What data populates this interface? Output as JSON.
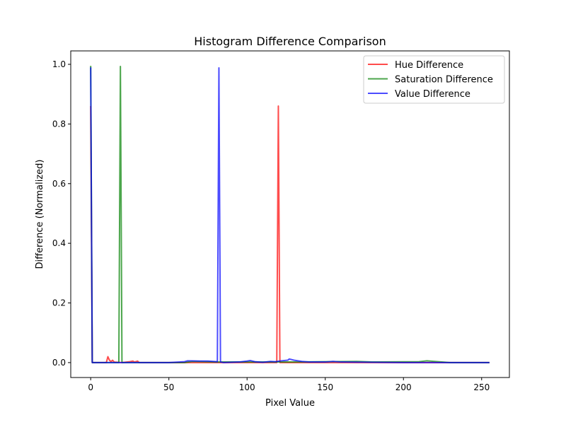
{
  "chart_data": {
    "type": "line",
    "title": "Histogram Difference Comparison",
    "xlabel": "Pixel Value",
    "ylabel": "Difference (Normalized)",
    "xlim": [
      -12.75,
      267.75
    ],
    "ylim": [
      -0.05,
      1.045
    ],
    "xticks": [
      0,
      50,
      100,
      150,
      200,
      250
    ],
    "yticks": [
      0.0,
      0.2,
      0.4,
      0.6,
      0.8,
      1.0
    ],
    "ytick_labels": [
      "0.0",
      "0.2",
      "0.4",
      "0.6",
      "0.8",
      "1.0"
    ],
    "grid": false,
    "legend_placement": "upper right",
    "series": [
      {
        "name": "Hue Difference",
        "color": "#ff0000",
        "alpha": 0.7,
        "points": [
          [
            0,
            0.86
          ],
          [
            1,
            0
          ],
          [
            10,
            0
          ],
          [
            11,
            0.02
          ],
          [
            12,
            0.008
          ],
          [
            13,
            0.003
          ],
          [
            14,
            0.008
          ],
          [
            15,
            0.002
          ],
          [
            20,
            0
          ],
          [
            25,
            0.003
          ],
          [
            27,
            0.005
          ],
          [
            28,
            0.002
          ],
          [
            30,
            0.005
          ],
          [
            31,
            0
          ],
          [
            119,
            0
          ],
          [
            120,
            0.86
          ],
          [
            121,
            0
          ],
          [
            255,
            0
          ]
        ]
      },
      {
        "name": "Saturation Difference",
        "color": "#008000",
        "alpha": 0.7,
        "points": [
          [
            0,
            0.995
          ],
          [
            1,
            0
          ],
          [
            18,
            0
          ],
          [
            19,
            0.993
          ],
          [
            20,
            0
          ],
          [
            60,
            0
          ],
          [
            65,
            0.004
          ],
          [
            80,
            0.002
          ],
          [
            130,
            0.002
          ],
          [
            170,
            0.004
          ],
          [
            180,
            0.002
          ],
          [
            210,
            0.003
          ],
          [
            215,
            0.006
          ],
          [
            220,
            0.004
          ],
          [
            230,
            0
          ],
          [
            255,
            0
          ]
        ]
      },
      {
        "name": "Value Difference",
        "color": "#0000ff",
        "alpha": 0.7,
        "points": [
          [
            0,
            0.99
          ],
          [
            1,
            0
          ],
          [
            50,
            0
          ],
          [
            60,
            0.003
          ],
          [
            62,
            0.006
          ],
          [
            70,
            0.005
          ],
          [
            75,
            0.005
          ],
          [
            81,
            0.003
          ],
          [
            82,
            0.988
          ],
          [
            83,
            0.002
          ],
          [
            85,
            0
          ],
          [
            95,
            0.002
          ],
          [
            100,
            0.005
          ],
          [
            102,
            0.007
          ],
          [
            105,
            0.003
          ],
          [
            110,
            0.001
          ],
          [
            115,
            0.004
          ],
          [
            118,
            0.003
          ],
          [
            122,
            0.006
          ],
          [
            126,
            0.008
          ],
          [
            127,
            0.012
          ],
          [
            130,
            0.008
          ],
          [
            135,
            0.004
          ],
          [
            140,
            0.002
          ],
          [
            150,
            0.002
          ],
          [
            155,
            0.004
          ],
          [
            160,
            0.002
          ],
          [
            200,
            0
          ],
          [
            255,
            0
          ]
        ]
      }
    ]
  }
}
